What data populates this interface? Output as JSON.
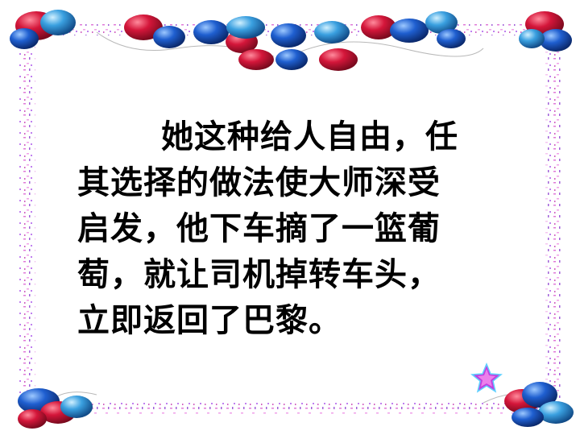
{
  "slide": {
    "lines": [
      "她这种给人自由，任",
      "其选择的做法使大师深受",
      "启发，他下车摘了一篮葡",
      "萄，就让司机掉转车头，",
      "立即返回了巴黎。"
    ]
  },
  "colors": {
    "text": "#000000",
    "background": "#ffffff",
    "balloon_red": "#d4163a",
    "balloon_blue": "#1f5fd0",
    "balloon_light_blue": "#3aa0e0",
    "confetti_pink": "#e07ad8",
    "confetti_purple": "#a060d8",
    "star": "#c040e0"
  },
  "icons": [
    "balloon-cluster-top",
    "balloon-cluster-bottom-left",
    "balloon-cluster-bottom-right",
    "confetti-border",
    "star-icon"
  ]
}
